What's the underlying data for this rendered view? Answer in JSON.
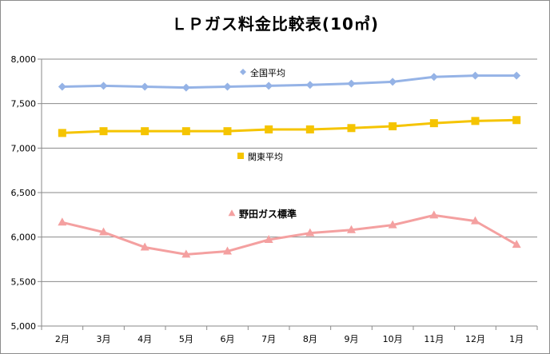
{
  "chart_data": {
    "type": "line",
    "title": "ＬＰガス料金比較表(10㎥)",
    "categories": [
      "2月",
      "3月",
      "4月",
      "5月",
      "6月",
      "7月",
      "8月",
      "9月",
      "10月",
      "11月",
      "12月",
      "1月"
    ],
    "ylim": [
      5000,
      8000
    ],
    "yticks": [
      "5,000",
      "5,500",
      "6,000",
      "6,500",
      "7,000",
      "7,500",
      "8,000"
    ],
    "grid": true,
    "series": [
      {
        "name": "全国平均",
        "color": "#95b3e6",
        "marker": "diamond",
        "values": [
          7690,
          7700,
          7690,
          7680,
          7690,
          7700,
          7710,
          7725,
          7745,
          7800,
          7815,
          7815
        ]
      },
      {
        "name": "関東平均",
        "color": "#f5c400",
        "marker": "square",
        "values": [
          7170,
          7190,
          7190,
          7190,
          7190,
          7210,
          7210,
          7225,
          7245,
          7280,
          7305,
          7315
        ]
      },
      {
        "name": "野田ガス標準",
        "color": "#f4a0a0",
        "marker": "triangle",
        "values": [
          6165,
          6055,
          5885,
          5805,
          5840,
          5970,
          6045,
          6080,
          6135,
          6245,
          6180,
          5915
        ]
      }
    ]
  }
}
